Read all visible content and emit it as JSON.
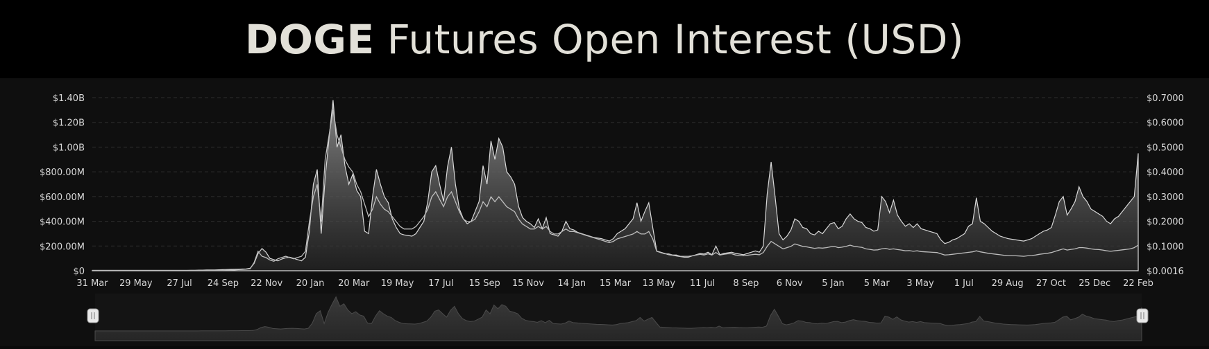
{
  "header": {
    "title_bold": "DOGE",
    "title_rest": "Futures Open Interest (USD)"
  },
  "colors": {
    "background": "#0f0f0f",
    "header_bg": "#000000",
    "oi_area": "#8a8a8a",
    "price_line": "#c8c8c8"
  },
  "chart_data": {
    "type": "area",
    "title": "DOGE Futures Open Interest (USD)",
    "x_tick_labels": [
      "31 Mar",
      "29 May",
      "27 Jul",
      "24 Sep",
      "22 Nov",
      "20 Jan",
      "20 Mar",
      "19 May",
      "17 Jul",
      "15 Sep",
      "15 Nov",
      "14 Jan",
      "15 Mar",
      "13 May",
      "11 Jul",
      "8 Sep",
      "6 Nov",
      "5 Jan",
      "5 Mar",
      "3 May",
      "1 Jul",
      "29 Aug",
      "27 Oct",
      "25 Dec",
      "22 Feb"
    ],
    "y_left_ticks": [
      "$0",
      "$200.00M",
      "$400.00M",
      "$600.00M",
      "$800.00M",
      "$1.00B",
      "$1.20B",
      "$1.40B"
    ],
    "y_right_ticks": [
      "$0.0016",
      "$0.1000",
      "$0.2000",
      "$0.3000",
      "$0.4000",
      "$0.5000",
      "$0.6000",
      "$0.7000"
    ],
    "ylim_left": [
      0,
      1400000000
    ],
    "ylim_right": [
      0.0016,
      0.7
    ],
    "grid": true,
    "series": [
      {
        "axis": "left",
        "style": "area",
        "values": [
          3,
          3,
          3,
          3,
          3,
          3,
          3,
          3,
          3,
          3,
          3,
          3,
          3,
          3,
          3,
          3,
          3,
          3,
          3,
          3,
          3,
          3,
          3,
          3,
          3,
          4,
          4,
          5,
          5,
          6,
          6,
          7,
          8,
          9,
          10,
          11,
          12,
          13,
          14,
          15,
          20,
          60,
          140,
          180,
          150,
          100,
          90,
          80,
          95,
          105,
          110,
          100,
          90,
          80,
          110,
          320,
          700,
          820,
          300,
          750,
          1080,
          1380,
          1000,
          1100,
          850,
          700,
          780,
          650,
          600,
          320,
          300,
          600,
          820,
          700,
          600,
          550,
          420,
          350,
          300,
          290,
          285,
          280,
          300,
          350,
          400,
          560,
          800,
          850,
          700,
          560,
          840,
          1000,
          700,
          500,
          420,
          380,
          400,
          480,
          560,
          850,
          700,
          1050,
          900,
          1070,
          1000,
          800,
          760,
          700,
          520,
          430,
          400,
          380,
          350,
          420,
          340,
          430,
          300,
          290,
          280,
          320,
          400,
          340,
          330,
          310,
          300,
          290,
          280,
          270,
          265,
          260,
          250,
          240,
          260,
          300,
          320,
          340,
          380,
          420,
          550,
          400,
          480,
          550,
          350,
          160,
          150,
          140,
          130,
          125,
          120,
          115,
          110,
          110,
          120,
          130,
          140,
          135,
          150,
          130,
          200,
          130,
          140,
          145,
          150,
          140,
          135,
          130,
          140,
          150,
          160,
          150,
          200,
          620,
          880,
          600,
          300,
          250,
          280,
          330,
          420,
          400,
          350,
          340,
          300,
          290,
          320,
          300,
          340,
          380,
          390,
          340,
          360,
          420,
          460,
          420,
          400,
          390,
          350,
          340,
          320,
          330,
          600,
          560,
          470,
          570,
          450,
          400,
          360,
          380,
          350,
          380,
          340,
          330,
          320,
          310,
          300,
          250,
          220,
          230,
          250,
          260,
          280,
          300,
          360,
          380,
          590,
          400,
          380,
          350,
          320,
          300,
          280,
          270,
          260,
          255,
          250,
          245,
          240,
          250,
          260,
          280,
          300,
          320,
          330,
          350,
          450,
          560,
          600,
          450,
          500,
          560,
          680,
          600,
          560,
          500,
          480,
          460,
          440,
          400,
          380,
          420,
          440,
          480,
          520,
          560,
          600,
          950
        ]
      },
      {
        "axis": "right",
        "style": "line",
        "values": [
          0.003,
          0.003,
          0.003,
          0.003,
          0.003,
          0.003,
          0.003,
          0.003,
          0.003,
          0.003,
          0.003,
          0.003,
          0.003,
          0.003,
          0.003,
          0.003,
          0.003,
          0.003,
          0.003,
          0.003,
          0.003,
          0.003,
          0.003,
          0.003,
          0.003,
          0.003,
          0.003,
          0.003,
          0.003,
          0.003,
          0.003,
          0.003,
          0.003,
          0.003,
          0.004,
          0.004,
          0.005,
          0.006,
          0.007,
          0.008,
          0.01,
          0.035,
          0.08,
          0.06,
          0.055,
          0.045,
          0.04,
          0.05,
          0.055,
          0.06,
          0.055,
          0.05,
          0.055,
          0.06,
          0.08,
          0.2,
          0.3,
          0.35,
          0.2,
          0.45,
          0.55,
          0.65,
          0.55,
          0.5,
          0.45,
          0.42,
          0.4,
          0.35,
          0.32,
          0.27,
          0.22,
          0.25,
          0.3,
          0.27,
          0.25,
          0.24,
          0.22,
          0.2,
          0.18,
          0.17,
          0.17,
          0.17,
          0.18,
          0.2,
          0.22,
          0.25,
          0.3,
          0.32,
          0.29,
          0.26,
          0.3,
          0.32,
          0.28,
          0.24,
          0.21,
          0.2,
          0.2,
          0.21,
          0.24,
          0.28,
          0.26,
          0.3,
          0.28,
          0.3,
          0.28,
          0.26,
          0.25,
          0.24,
          0.21,
          0.19,
          0.18,
          0.17,
          0.17,
          0.18,
          0.17,
          0.18,
          0.16,
          0.15,
          0.15,
          0.16,
          0.17,
          0.16,
          0.16,
          0.155,
          0.15,
          0.145,
          0.14,
          0.135,
          0.13,
          0.125,
          0.12,
          0.115,
          0.12,
          0.13,
          0.135,
          0.14,
          0.145,
          0.15,
          0.16,
          0.15,
          0.15,
          0.16,
          0.13,
          0.08,
          0.075,
          0.07,
          0.07,
          0.065,
          0.065,
          0.06,
          0.06,
          0.06,
          0.062,
          0.065,
          0.068,
          0.065,
          0.07,
          0.065,
          0.075,
          0.065,
          0.068,
          0.07,
          0.07,
          0.065,
          0.063,
          0.062,
          0.064,
          0.066,
          0.068,
          0.066,
          0.075,
          0.1,
          0.12,
          0.11,
          0.1,
          0.09,
          0.095,
          0.1,
          0.11,
          0.105,
          0.1,
          0.098,
          0.095,
          0.092,
          0.094,
          0.093,
          0.095,
          0.098,
          0.1,
          0.095,
          0.097,
          0.1,
          0.105,
          0.1,
          0.098,
          0.096,
          0.09,
          0.088,
          0.085,
          0.086,
          0.09,
          0.092,
          0.088,
          0.09,
          0.087,
          0.085,
          0.082,
          0.083,
          0.08,
          0.082,
          0.079,
          0.078,
          0.077,
          0.076,
          0.075,
          0.07,
          0.065,
          0.066,
          0.068,
          0.07,
          0.072,
          0.074,
          0.076,
          0.078,
          0.082,
          0.078,
          0.075,
          0.072,
          0.07,
          0.068,
          0.066,
          0.064,
          0.063,
          0.062,
          0.062,
          0.061,
          0.06,
          0.062,
          0.063,
          0.065,
          0.068,
          0.07,
          0.072,
          0.075,
          0.08,
          0.085,
          0.09,
          0.085,
          0.088,
          0.09,
          0.095,
          0.095,
          0.093,
          0.09,
          0.088,
          0.087,
          0.085,
          0.082,
          0.08,
          0.082,
          0.084,
          0.086,
          0.088,
          0.09,
          0.095,
          0.105
        ]
      }
    ],
    "navigator": {
      "range_start": 0,
      "range_end": 1
    }
  }
}
